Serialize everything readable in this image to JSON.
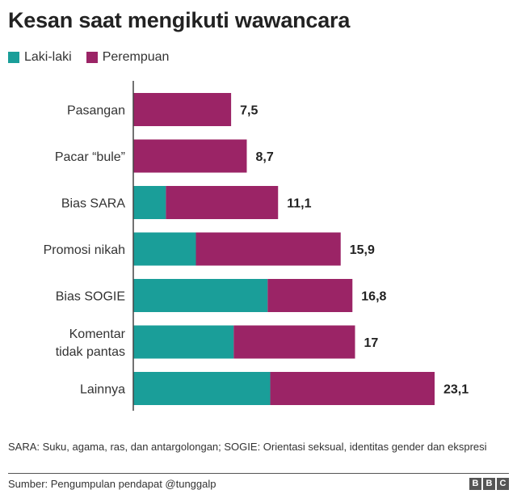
{
  "title": "Kesan saat mengikuti wawancara",
  "legend": [
    {
      "label": "Laki-laki",
      "color": "#1a9e99"
    },
    {
      "label": "Perempuan",
      "color": "#9b2466"
    }
  ],
  "chart_data": {
    "type": "bar",
    "orientation": "horizontal",
    "stacked": true,
    "categories": [
      [
        "Pasangan"
      ],
      [
        "Pacar “bule”"
      ],
      [
        "Bias SARA"
      ],
      [
        "Promosi nikah"
      ],
      [
        "Bias SOGIE"
      ],
      [
        "Komentar",
        "tidak pantas"
      ],
      [
        "Lainnya"
      ]
    ],
    "series": [
      {
        "name": "Laki-laki",
        "color": "#1a9e99",
        "values": [
          0,
          0,
          2.5,
          4.8,
          10.3,
          7.7,
          10.5
        ]
      },
      {
        "name": "Perempuan",
        "color": "#9b2466",
        "values": [
          7.5,
          8.7,
          8.6,
          11.1,
          6.5,
          9.3,
          12.6
        ]
      }
    ],
    "totals": [
      "7,5",
      "8,7",
      "11,1",
      "15,9",
      "16,8",
      "17",
      "23,1"
    ],
    "xlim": [
      0,
      23.1
    ],
    "grid": false,
    "legend_position": "top-left"
  },
  "note": "SARA: Suku, agama, ras, dan antargolongan; SOGIE: Orientasi seksual, identitas gender dan ekspresi",
  "source": "Sumber: Pengumpulan pendapat @tunggalp",
  "logo": [
    "B",
    "B",
    "C"
  ]
}
